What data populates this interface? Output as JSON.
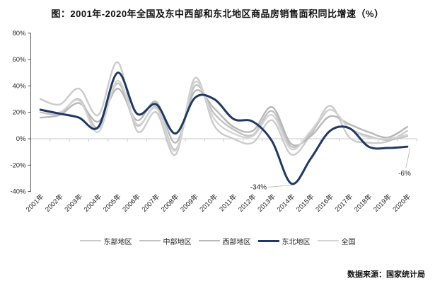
{
  "title": "图：2001年-2020年全国及东中西部和东北地区商品房销售面积同比增速（%）",
  "source": "数据来源：国家统计局",
  "chart_data": {
    "type": "line",
    "title": "图：2001年-2020年全国及东中西部和东北地区商品房销售面积同比增速（%）",
    "smooth": true,
    "grid": false,
    "legend_position": "bottom",
    "ylim": [
      -40,
      80
    ],
    "y_ticks": [
      "80%",
      "60%",
      "40%",
      "20%",
      "0%",
      "-20%",
      "-40%"
    ],
    "x_categories": [
      "2001年",
      "2002年",
      "2003年",
      "2004年",
      "2005年",
      "2006年",
      "2007年",
      "2008年",
      "2009年",
      "2010年",
      "2011年",
      "2012年",
      "2013年",
      "2014年",
      "2015年",
      "2016年",
      "2017年",
      "2018年",
      "2019年",
      "2020年"
    ],
    "series": [
      {
        "name": "东部地区",
        "color": "#cbcbcb",
        "width": 2.4,
        "emphasis": false,
        "values": [
          30,
          26,
          38,
          18,
          58,
          6,
          20,
          -12,
          46,
          10,
          0,
          -3,
          14,
          -12,
          3,
          25,
          1,
          -3,
          -2,
          6
        ]
      },
      {
        "name": "中部地区",
        "color": "#c2c2c2",
        "width": 2.4,
        "emphasis": false,
        "values": [
          20,
          19,
          30,
          8,
          42,
          10,
          24,
          -8,
          40,
          19,
          7,
          3,
          21,
          -6,
          4,
          22,
          8,
          2,
          -1,
          2
        ]
      },
      {
        "name": "西部地区",
        "color": "#b8b8b8",
        "width": 2.4,
        "emphasis": false,
        "values": [
          16,
          18,
          27,
          13,
          38,
          14,
          28,
          -3,
          36,
          23,
          9,
          6,
          24,
          -4,
          2,
          17,
          11,
          5,
          1,
          9
        ]
      },
      {
        "name": "东北地区",
        "color": "#1f3864",
        "width": 3,
        "emphasis": true,
        "values": [
          22,
          19,
          16,
          9,
          50,
          19,
          26,
          4,
          31,
          30,
          15,
          13,
          -2,
          -34,
          -15,
          6,
          8,
          -6,
          -7,
          -6
        ]
      },
      {
        "name": "全国",
        "color": "#d4d4d4",
        "width": 2.4,
        "emphasis": false,
        "values": [
          22,
          20,
          29,
          5,
          44,
          11,
          23,
          -9,
          43,
          15,
          4,
          2,
          18,
          -8,
          6,
          22,
          8,
          1,
          0,
          3
        ]
      }
    ],
    "annotations": [
      {
        "text": "-34%",
        "series": "东北地区",
        "year_index": 13,
        "value": -34
      },
      {
        "text": "-6%",
        "series": "东北地区",
        "year_index": 19,
        "value": -6
      }
    ]
  }
}
